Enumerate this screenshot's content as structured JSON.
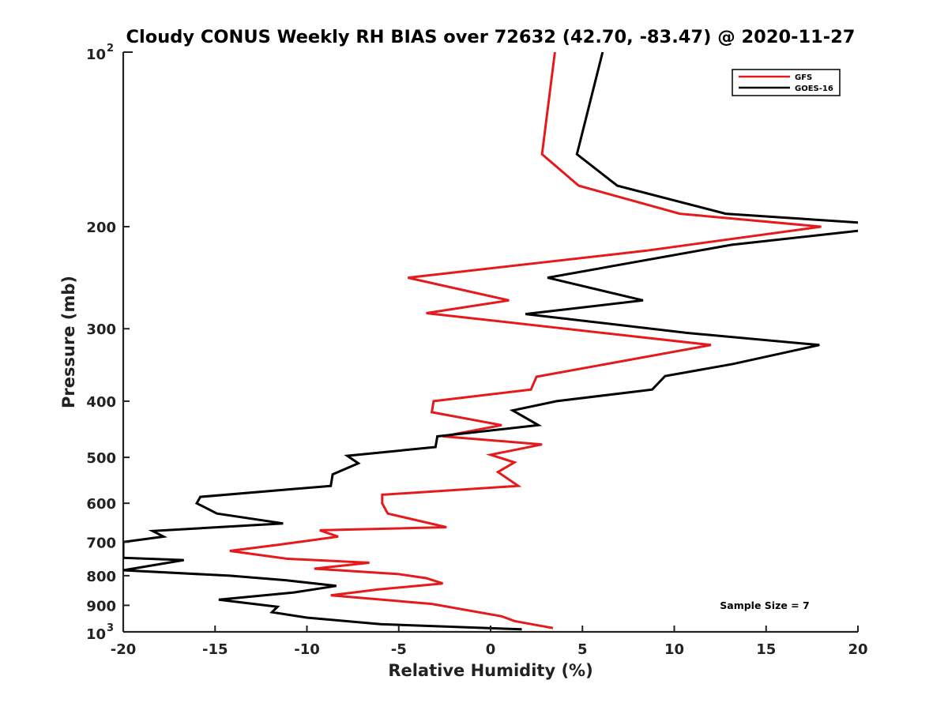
{
  "chart_data": {
    "type": "line",
    "title": "Cloudy CONUS Weekly RH BIAS over 72632 (42.70, -83.47) @ 2020-11-27",
    "xlabel": "Relative Humidity (%)",
    "ylabel": "Pressure (mb)",
    "xlim": [
      -20,
      20
    ],
    "ylim": [
      100,
      1000
    ],
    "yscale": "log",
    "y_reversed": true,
    "grid": false,
    "legend_position": "top-right",
    "x_ticks": [
      -20,
      -15,
      -10,
      -5,
      0,
      5,
      10,
      15,
      20
    ],
    "x_tick_labels": [
      "-20",
      "-15",
      "-10",
      "-5",
      "0",
      "5",
      "10",
      "15",
      "20"
    ],
    "y_ticks": [
      200,
      300,
      400,
      500,
      600,
      700,
      800,
      900
    ],
    "y_tick_labels": [
      "200",
      "300",
      "400",
      "500",
      "600",
      "700",
      "800",
      "900"
    ],
    "y_decade_ticks": [
      {
        "value": 100,
        "base": "10",
        "exp": "2"
      },
      {
        "value": 1000,
        "base": "10",
        "exp": "3"
      }
    ],
    "annotation": "Sample Size = 7",
    "series": [
      {
        "name": "GFS",
        "color": "#e41a1c",
        "points": [
          [
            3.5,
            100
          ],
          [
            2.8,
            150
          ],
          [
            4.8,
            170
          ],
          [
            10.3,
            190
          ],
          [
            18.0,
            200
          ],
          [
            8.5,
            220
          ],
          [
            -4.5,
            245
          ],
          [
            1.0,
            268
          ],
          [
            -3.5,
            282
          ],
          [
            12.0,
            320
          ],
          [
            2.5,
            363
          ],
          [
            2.2,
            382
          ],
          [
            -3.1,
            400
          ],
          [
            -3.2,
            418
          ],
          [
            0.6,
            440
          ],
          [
            -2.6,
            460
          ],
          [
            2.8,
            475
          ],
          [
            0.0,
            495
          ],
          [
            1.3,
            510
          ],
          [
            0.4,
            530
          ],
          [
            1.5,
            560
          ],
          [
            -5.9,
            580
          ],
          [
            -5.9,
            600
          ],
          [
            -5.6,
            625
          ],
          [
            -2.4,
            660
          ],
          [
            -9.3,
            668
          ],
          [
            -8.3,
            685
          ],
          [
            -11.6,
            708
          ],
          [
            -14.2,
            725
          ],
          [
            -11.1,
            748
          ],
          [
            -6.6,
            760
          ],
          [
            -9.6,
            778
          ],
          [
            -5.0,
            795
          ],
          [
            -3.5,
            808
          ],
          [
            -2.6,
            825
          ],
          [
            -6.1,
            845
          ],
          [
            -8.7,
            865
          ],
          [
            -3.2,
            895
          ],
          [
            0.6,
            940
          ],
          [
            1.3,
            958
          ],
          [
            3.4,
            985
          ]
        ]
      },
      {
        "name": "GOES-16",
        "color": "#000000",
        "points": [
          [
            6.1,
            100
          ],
          [
            4.7,
            150
          ],
          [
            6.9,
            170
          ],
          [
            12.8,
            190
          ],
          [
            20.2,
            197
          ],
          [
            20.2,
            203
          ],
          [
            13.1,
            215
          ],
          [
            3.1,
            245
          ],
          [
            8.3,
            268
          ],
          [
            1.9,
            283
          ],
          [
            10.7,
            305
          ],
          [
            17.9,
            320
          ],
          [
            13.2,
            345
          ],
          [
            9.5,
            362
          ],
          [
            8.8,
            382
          ],
          [
            3.6,
            400
          ],
          [
            1.2,
            415
          ],
          [
            2.6,
            440
          ],
          [
            -2.9,
            460
          ],
          [
            -3.0,
            480
          ],
          [
            -7.8,
            497
          ],
          [
            -7.2,
            512
          ],
          [
            -8.6,
            535
          ],
          [
            -8.7,
            560
          ],
          [
            -15.8,
            585
          ],
          [
            -16.0,
            600
          ],
          [
            -14.9,
            625
          ],
          [
            -11.3,
            650
          ],
          [
            -18.4,
            670
          ],
          [
            -17.8,
            685
          ],
          [
            -20.0,
            700
          ],
          [
            -20.0,
            745
          ],
          [
            -16.7,
            752
          ],
          [
            -20.0,
            783
          ],
          [
            -14.2,
            800
          ],
          [
            -11.1,
            815
          ],
          [
            -8.4,
            833
          ],
          [
            -10.7,
            855
          ],
          [
            -14.8,
            880
          ],
          [
            -11.6,
            905
          ],
          [
            -11.9,
            925
          ],
          [
            -10.0,
            945
          ],
          [
            -6.0,
            970
          ],
          [
            1.7,
            990
          ]
        ]
      }
    ]
  }
}
